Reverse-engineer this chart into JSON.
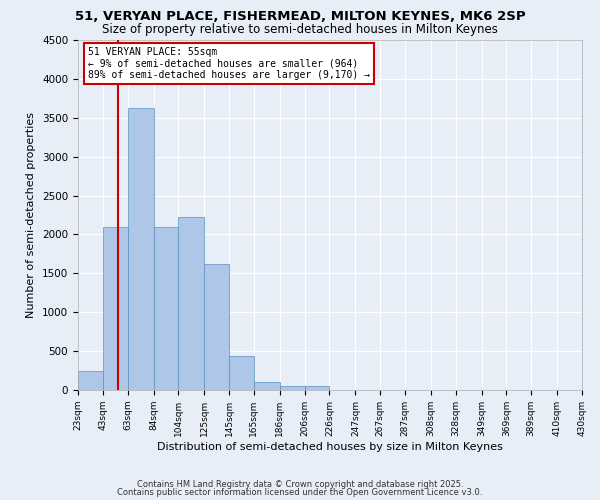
{
  "title1": "51, VERYAN PLACE, FISHERMEAD, MILTON KEYNES, MK6 2SP",
  "title2": "Size of property relative to semi-detached houses in Milton Keynes",
  "xlabel": "Distribution of semi-detached houses by size in Milton Keynes",
  "ylabel": "Number of semi-detached properties",
  "bin_edges": [
    23,
    43,
    63,
    84,
    104,
    125,
    145,
    165,
    186,
    206,
    226,
    247,
    267,
    287,
    308,
    328,
    349,
    369,
    389,
    410,
    430
  ],
  "bar_heights": [
    250,
    2100,
    3620,
    2100,
    2220,
    1620,
    440,
    100,
    50,
    50,
    0,
    0,
    0,
    0,
    0,
    0,
    0,
    0,
    0,
    0
  ],
  "bar_color": "#aec6e8",
  "bar_edgecolor": "#5a8fc2",
  "background_color": "#e8eef8",
  "grid_color": "#ffffff",
  "property_size": 55,
  "red_line_color": "#cc0000",
  "annotation_text": "51 VERYAN PLACE: 55sqm\n← 9% of semi-detached houses are smaller (964)\n89% of semi-detached houses are larger (9,170) →",
  "annotation_box_color": "#ffffff",
  "annotation_border_color": "#cc0000",
  "ylim": [
    0,
    4500
  ],
  "yticks": [
    0,
    500,
    1000,
    1500,
    2000,
    2500,
    3000,
    3500,
    4000,
    4500
  ],
  "footer1": "Contains HM Land Registry data © Crown copyright and database right 2025.",
  "footer2": "Contains public sector information licensed under the Open Government Licence v3.0.",
  "title1_fontsize": 9.5,
  "title2_fontsize": 8.5,
  "tick_label_fontsize": 6.5,
  "axis_label_fontsize": 8,
  "footer_fontsize": 6,
  "ylabel_fontsize": 8
}
